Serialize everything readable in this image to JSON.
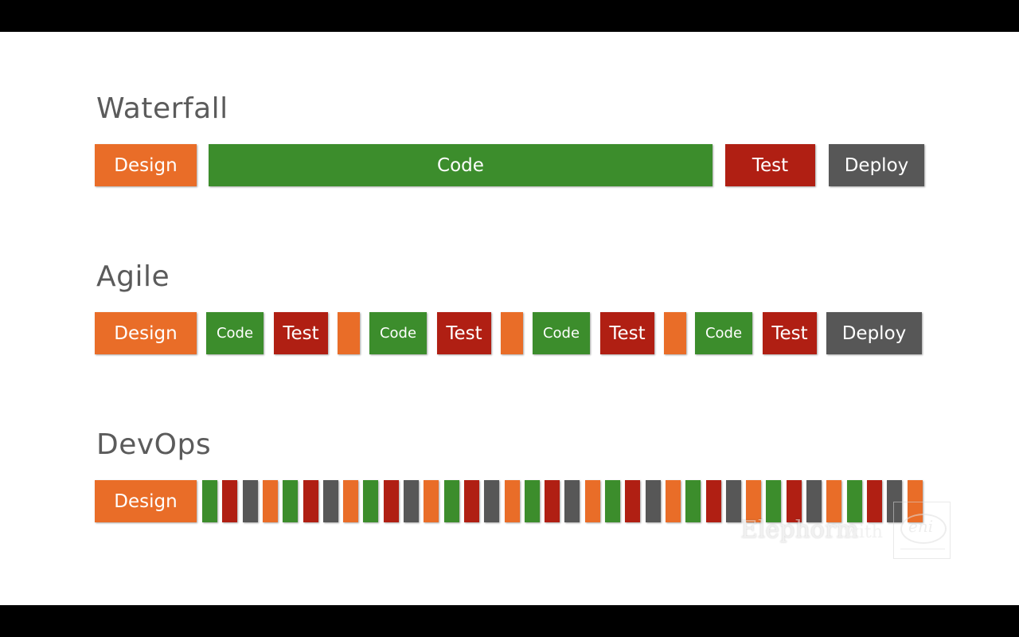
{
  "colors": {
    "orange": "#e96d28",
    "green": "#3c8d2c",
    "red": "#b01f13",
    "gray": "#575757"
  },
  "sections": {
    "waterfall": {
      "title": "Waterfall",
      "blocks": [
        {
          "label": "Design",
          "color": "orange"
        },
        {
          "label": "Code",
          "color": "green"
        },
        {
          "label": "Test",
          "color": "red"
        },
        {
          "label": "Deploy",
          "color": "gray"
        }
      ]
    },
    "agile": {
      "title": "Agile",
      "blocks": [
        {
          "label": "Design",
          "color": "orange"
        },
        {
          "label": "Code",
          "color": "green"
        },
        {
          "label": "Test",
          "color": "red"
        },
        {
          "label": "",
          "color": "orange"
        },
        {
          "label": "Code",
          "color": "green"
        },
        {
          "label": "Test",
          "color": "red"
        },
        {
          "label": "",
          "color": "orange"
        },
        {
          "label": "Code",
          "color": "green"
        },
        {
          "label": "Test",
          "color": "red"
        },
        {
          "label": "",
          "color": "orange"
        },
        {
          "label": "Code",
          "color": "green"
        },
        {
          "label": "Test",
          "color": "red"
        },
        {
          "label": "Deploy",
          "color": "gray"
        }
      ]
    },
    "devops": {
      "title": "DevOps",
      "design_label": "Design",
      "strip_pattern": [
        "green",
        "red",
        "gray",
        "orange"
      ],
      "strip_count": 36
    }
  },
  "watermark": {
    "brand": "Elephorm",
    "with_text": "with",
    "partner": "eni"
  }
}
